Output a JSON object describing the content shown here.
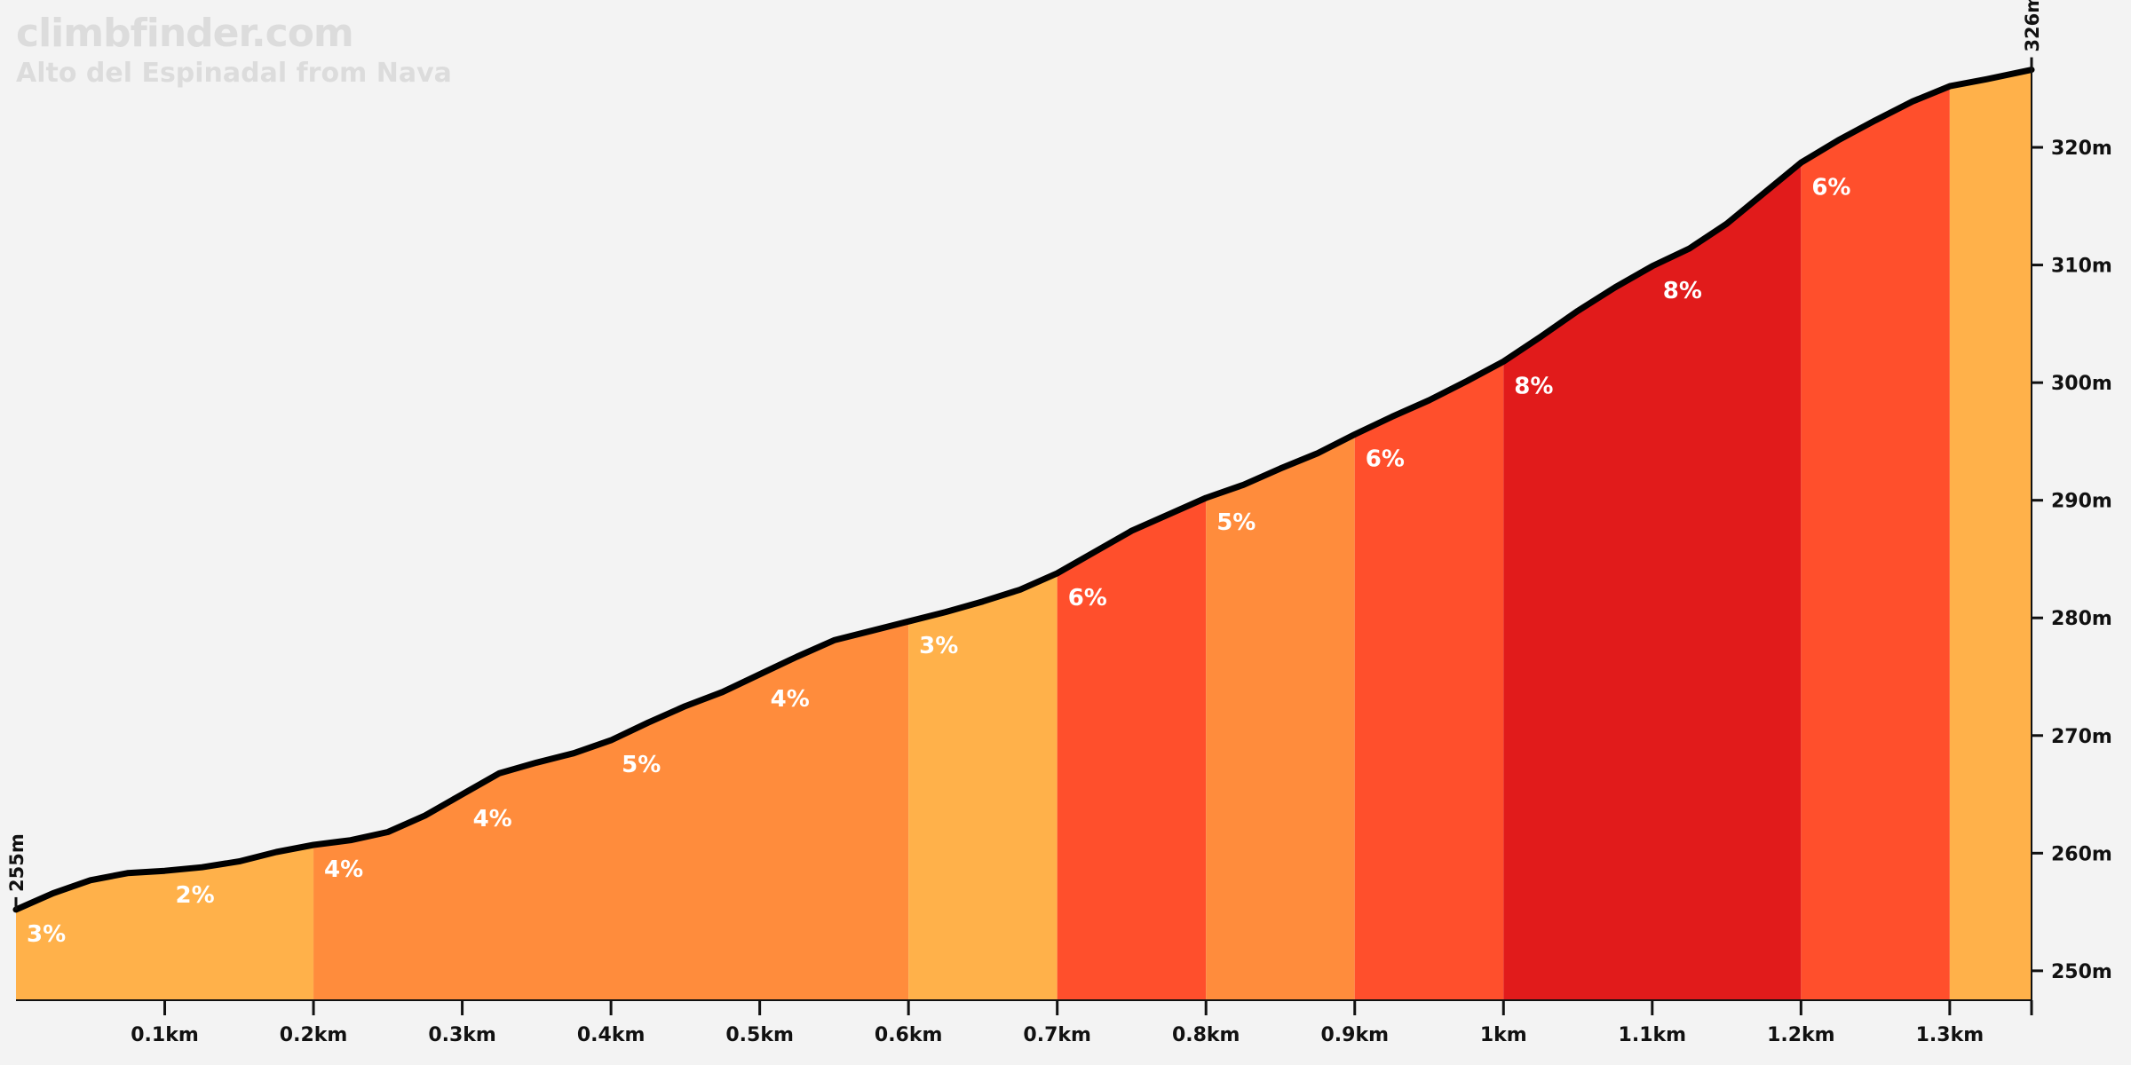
{
  "branding": {
    "site": "climbfinder.com",
    "climb": "Alto del Espinadal from Nava"
  },
  "colors": {
    "background": "#f3f3f3",
    "line": "#000000",
    "grade_colors": {
      "2": "#ffb14a",
      "3": "#ffb14a",
      "4": "#ff8c3c",
      "5": "#ff8c3c",
      "6": "#ff4f2c",
      "8": "#e11b1b"
    }
  },
  "chart_data": {
    "type": "area",
    "xlabel": "",
    "ylabel": "",
    "x_unit": "km",
    "xlim": [
      0,
      1.355
    ],
    "ylim": [
      247.5,
      328
    ],
    "x_ticks": [
      {
        "value": 0.1,
        "label": "0.1km"
      },
      {
        "value": 0.2,
        "label": "0.2km"
      },
      {
        "value": 0.3,
        "label": "0.3km"
      },
      {
        "value": 0.4,
        "label": "0.4km"
      },
      {
        "value": 0.5,
        "label": "0.5km"
      },
      {
        "value": 0.6,
        "label": "0.6km"
      },
      {
        "value": 0.7,
        "label": "0.7km"
      },
      {
        "value": 0.8,
        "label": "0.8km"
      },
      {
        "value": 0.9,
        "label": "0.9km"
      },
      {
        "value": 1.0,
        "label": "1km"
      },
      {
        "value": 1.1,
        "label": "1.1km"
      },
      {
        "value": 1.2,
        "label": "1.2km"
      },
      {
        "value": 1.3,
        "label": "1.3km"
      }
    ],
    "y_ticks": [
      {
        "value": 250,
        "label": "250m"
      },
      {
        "value": 260,
        "label": "260m"
      },
      {
        "value": 270,
        "label": "270m"
      },
      {
        "value": 280,
        "label": "280m"
      },
      {
        "value": 290,
        "label": "290m"
      },
      {
        "value": 300,
        "label": "300m"
      },
      {
        "value": 310,
        "label": "310m"
      },
      {
        "value": 320,
        "label": "320m"
      }
    ],
    "start_label": "255m",
    "end_label": "326m",
    "profile": {
      "x": [
        0,
        0.025,
        0.05,
        0.075,
        0.1,
        0.125,
        0.15,
        0.175,
        0.2,
        0.225,
        0.25,
        0.275,
        0.3,
        0.325,
        0.35,
        0.375,
        0.4,
        0.425,
        0.45,
        0.475,
        0.5,
        0.525,
        0.55,
        0.575,
        0.6,
        0.625,
        0.65,
        0.675,
        0.7,
        0.725,
        0.75,
        0.775,
        0.8,
        0.825,
        0.85,
        0.875,
        0.9,
        0.925,
        0.95,
        0.975,
        1.0,
        1.025,
        1.05,
        1.075,
        1.1,
        1.125,
        1.15,
        1.175,
        1.2,
        1.225,
        1.25,
        1.275,
        1.3,
        1.325,
        1.355
      ],
      "y": [
        255.2,
        256.6,
        257.7,
        258.3,
        258.5,
        258.8,
        259.3,
        260.1,
        260.7,
        261.1,
        261.8,
        263.2,
        265.0,
        266.8,
        267.7,
        268.5,
        269.6,
        271.1,
        272.5,
        273.7,
        275.2,
        276.7,
        278.1,
        278.9,
        279.7,
        280.5,
        281.4,
        282.4,
        283.8,
        285.6,
        287.4,
        288.8,
        290.2,
        291.3,
        292.7,
        294.0,
        295.6,
        297.1,
        298.5,
        300.1,
        301.8,
        303.9,
        306.1,
        308.1,
        309.9,
        311.4,
        313.5,
        316.1,
        318.7,
        320.6,
        322.3,
        323.9,
        325.2,
        325.8,
        326.6
      ]
    },
    "segments": [
      {
        "from": 0.0,
        "to": 0.2,
        "grade": 3,
        "label": "3%"
      },
      {
        "from": 0.2,
        "to": 0.6,
        "grade": 4,
        "label": "4%"
      },
      {
        "from": 0.6,
        "to": 0.7,
        "grade": 3,
        "label": "3%"
      },
      {
        "from": 0.7,
        "to": 0.8,
        "grade": 6,
        "label": "6%"
      },
      {
        "from": 0.8,
        "to": 0.9,
        "grade": 5,
        "label": "5%"
      },
      {
        "from": 0.9,
        "to": 1.0,
        "grade": 6,
        "label": "6%"
      },
      {
        "from": 1.0,
        "to": 1.2,
        "grade": 8,
        "label": "8%"
      },
      {
        "from": 1.2,
        "to": 1.3,
        "grade": 6,
        "label": "6%"
      },
      {
        "from": 1.3,
        "to": 1.355,
        "grade": 3,
        "label": ""
      }
    ],
    "grade_labels": [
      {
        "x": 0.0,
        "label": "3%"
      },
      {
        "x": 0.1,
        "label": "2%"
      },
      {
        "x": 0.2,
        "label": "4%"
      },
      {
        "x": 0.3,
        "label": "4%"
      },
      {
        "x": 0.4,
        "label": "5%"
      },
      {
        "x": 0.5,
        "label": "4%"
      },
      {
        "x": 0.6,
        "label": "3%"
      },
      {
        "x": 0.7,
        "label": "6%"
      },
      {
        "x": 0.8,
        "label": "5%"
      },
      {
        "x": 0.9,
        "label": "6%"
      },
      {
        "x": 1.0,
        "label": "8%"
      },
      {
        "x": 1.1,
        "label": "8%"
      },
      {
        "x": 1.2,
        "label": "6%"
      }
    ]
  }
}
